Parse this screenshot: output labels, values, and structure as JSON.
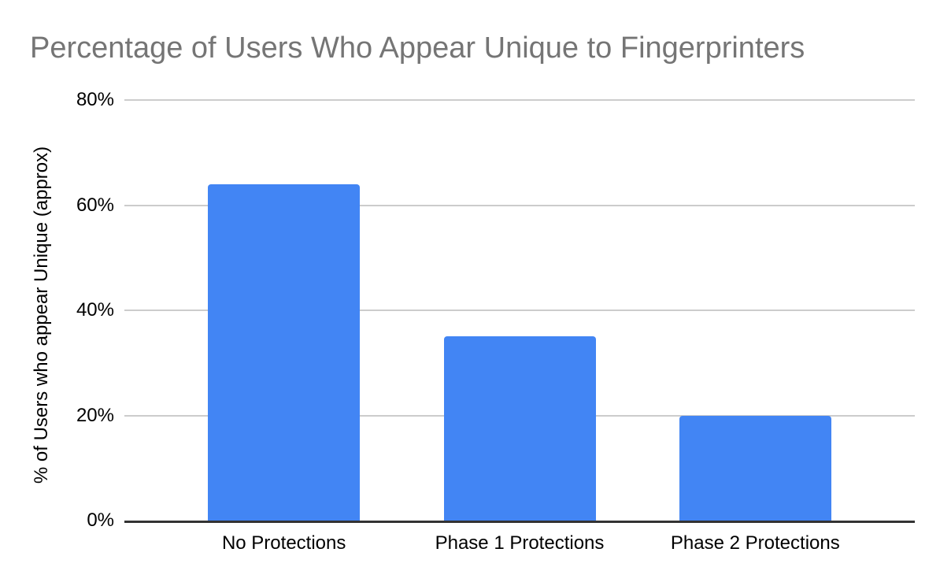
{
  "chart_data": {
    "type": "bar",
    "title": "Percentage of Users Who Appear Unique to Fingerprinters",
    "xlabel": "",
    "ylabel": "% of Users who appear Unique (approx)",
    "categories": [
      "No Protections",
      "Phase 1 Protections",
      "Phase 2 Protections"
    ],
    "values": [
      64,
      35,
      20
    ],
    "ylim": [
      0,
      80
    ],
    "yticks": [
      0,
      20,
      40,
      60,
      80
    ],
    "ytick_labels": [
      "0%",
      "20%",
      "40%",
      "60%",
      "80%"
    ],
    "grid": true,
    "legend": "none",
    "colors": {
      "bar": "#4285f4",
      "title_text": "#757575",
      "axis_text": "#000000",
      "gridline": "#cccccc",
      "baseline": "#333333",
      "background": "#ffffff"
    }
  }
}
